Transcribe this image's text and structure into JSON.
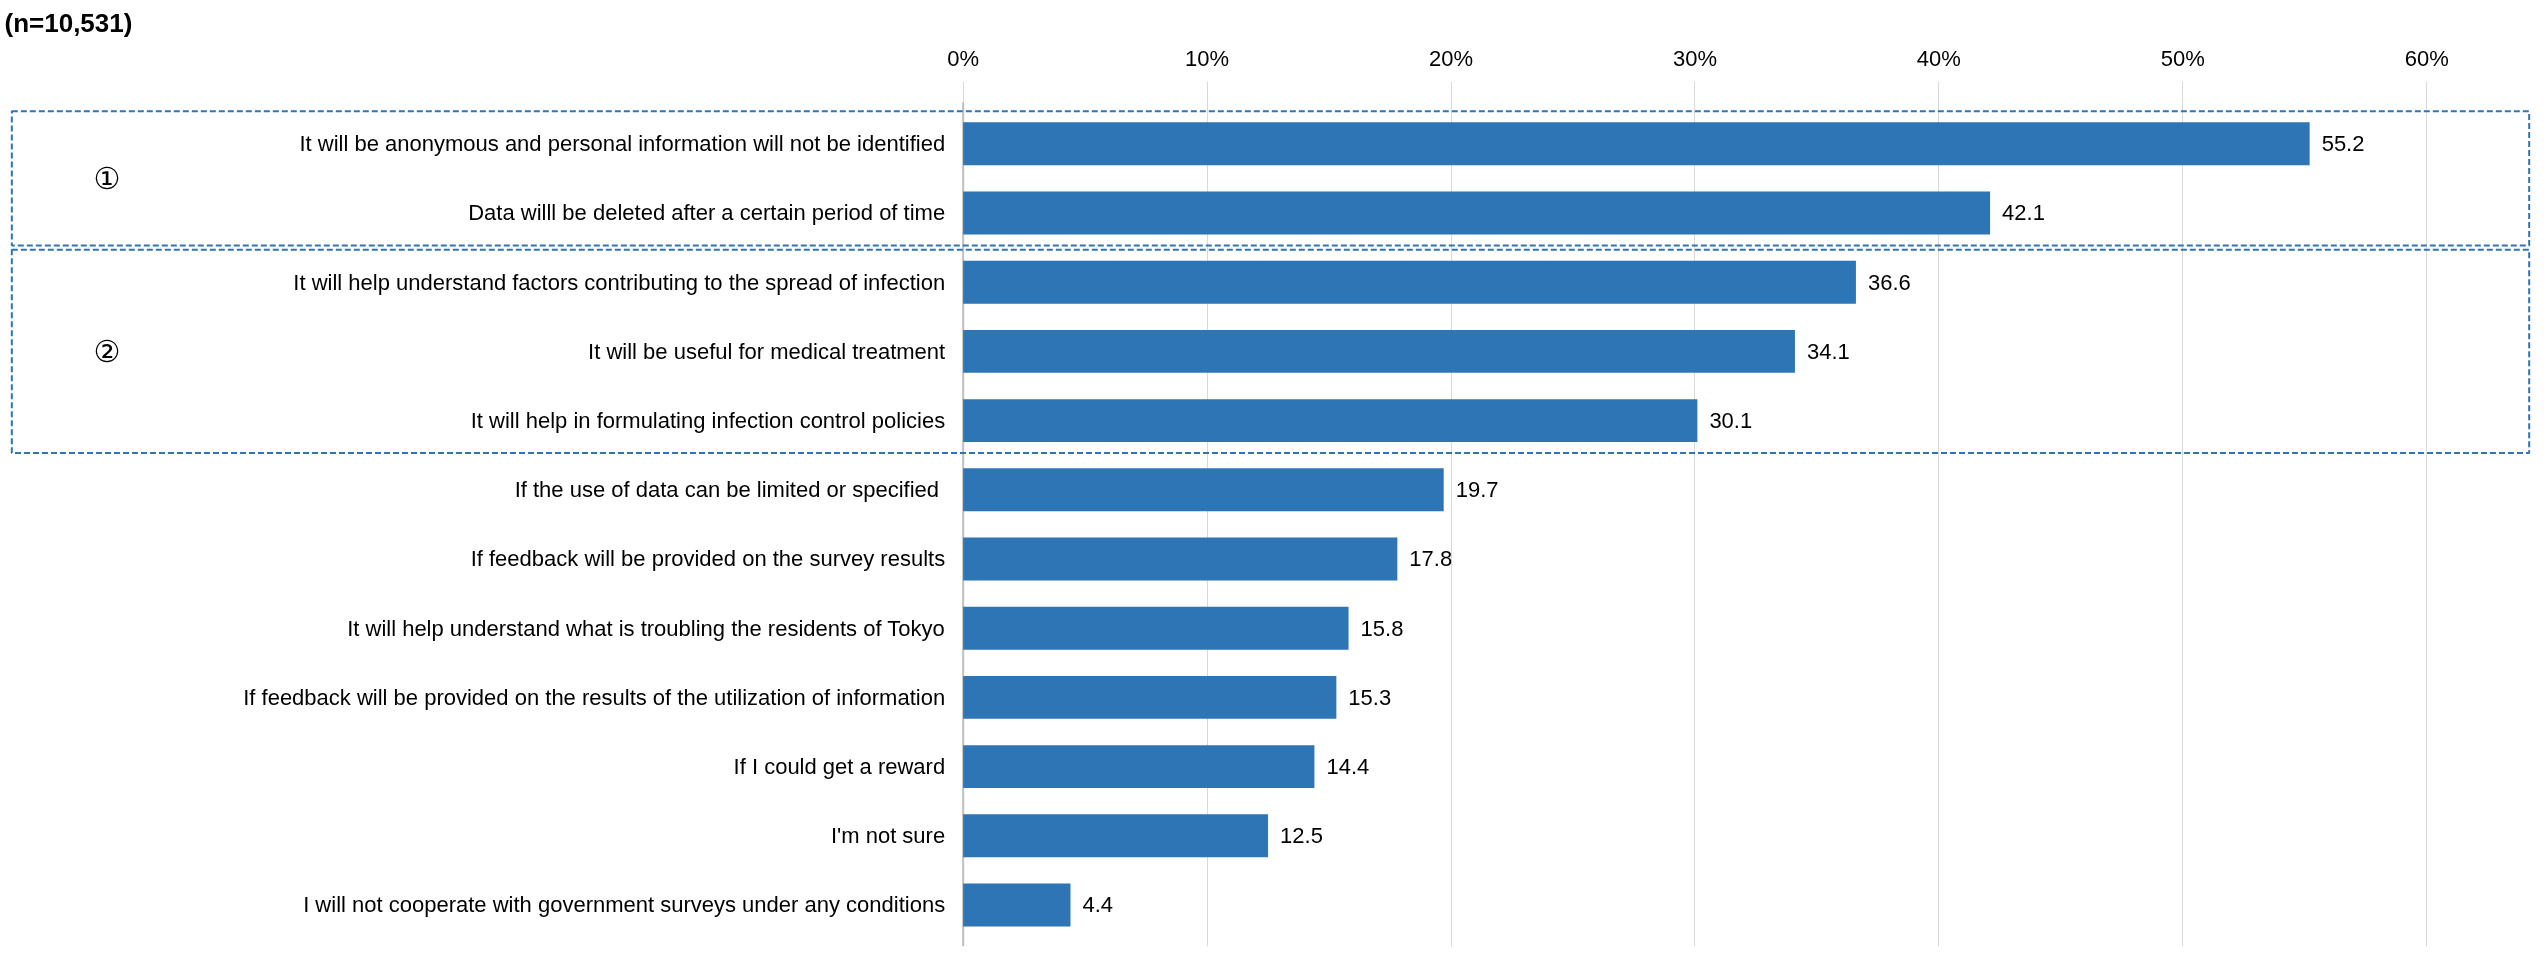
{
  "chart_data": {
    "type": "bar",
    "orientation": "horizontal",
    "title": "(n=10,531)",
    "categories": [
      "It will be anonymous and personal information will not be identified",
      "Data willl be deleted after a certain period of time",
      "It will help understand factors contributing to the spread of infection",
      "It will be useful for medical treatment",
      "It will help in formulating infection control policies",
      "If the use of data can be limited or specified ",
      "If feedback will be provided on the survey results",
      "It will help understand what is troubling the residents of Tokyo",
      "If feedback will be provided on the results of the utilization of information",
      "If I could get a reward",
      "I'm not sure",
      "I will not cooperate with government surveys under any conditions"
    ],
    "values": [
      55.2,
      42.1,
      36.6,
      34.1,
      30.1,
      19.7,
      17.8,
      15.8,
      15.3,
      14.4,
      12.5,
      4.4
    ],
    "color": "#2e75b6",
    "data_labels": true,
    "grid": "x",
    "xlim": [
      0,
      60
    ],
    "xticks": [
      {
        "value": 0,
        "label": "0%"
      },
      {
        "value": 10,
        "label": "10%"
      },
      {
        "value": 20,
        "label": "20%"
      },
      {
        "value": 30,
        "label": "30%"
      },
      {
        "value": 40,
        "label": "40%"
      },
      {
        "value": 50,
        "label": "50%"
      },
      {
        "value": 60,
        "label": "60%"
      }
    ],
    "annotations": [
      "①",
      "②"
    ]
  }
}
